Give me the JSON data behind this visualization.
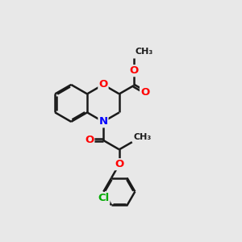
{
  "bg_color": "#e8e8e8",
  "bond_color": "#1a1a1a",
  "N_color": "#0000ff",
  "O_color": "#ff0000",
  "Cl_color": "#00aa00",
  "bond_width": 1.8,
  "dbo": 0.055,
  "font_size": 9.5,
  "fig_size": [
    3.0,
    3.0
  ],
  "dpi": 100,
  "xlim": [
    0,
    10
  ],
  "ylim": [
    0,
    10
  ]
}
